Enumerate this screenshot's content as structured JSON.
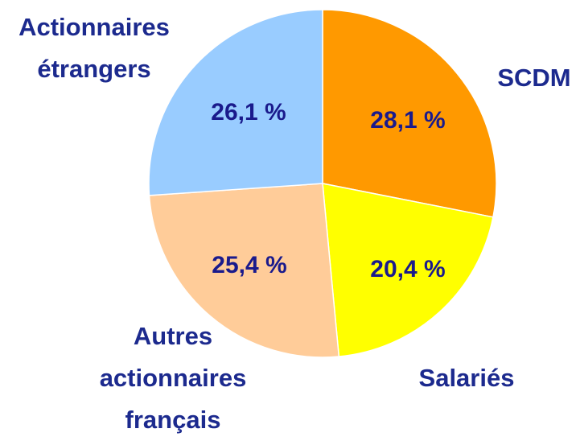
{
  "chart_data": {
    "type": "pie",
    "categories": [
      "SCDM",
      "Salariés",
      "Autres actionnaires français",
      "Actionnaires étrangers"
    ],
    "values": [
      28.1,
      20.4,
      25.4,
      26.1
    ],
    "value_labels": [
      "28,1 %",
      "20,4 %",
      "25,4 %",
      "26,1 %"
    ],
    "colors": [
      "#ff9900",
      "#ffff00",
      "#ffcc99",
      "#99ccff"
    ]
  }
}
